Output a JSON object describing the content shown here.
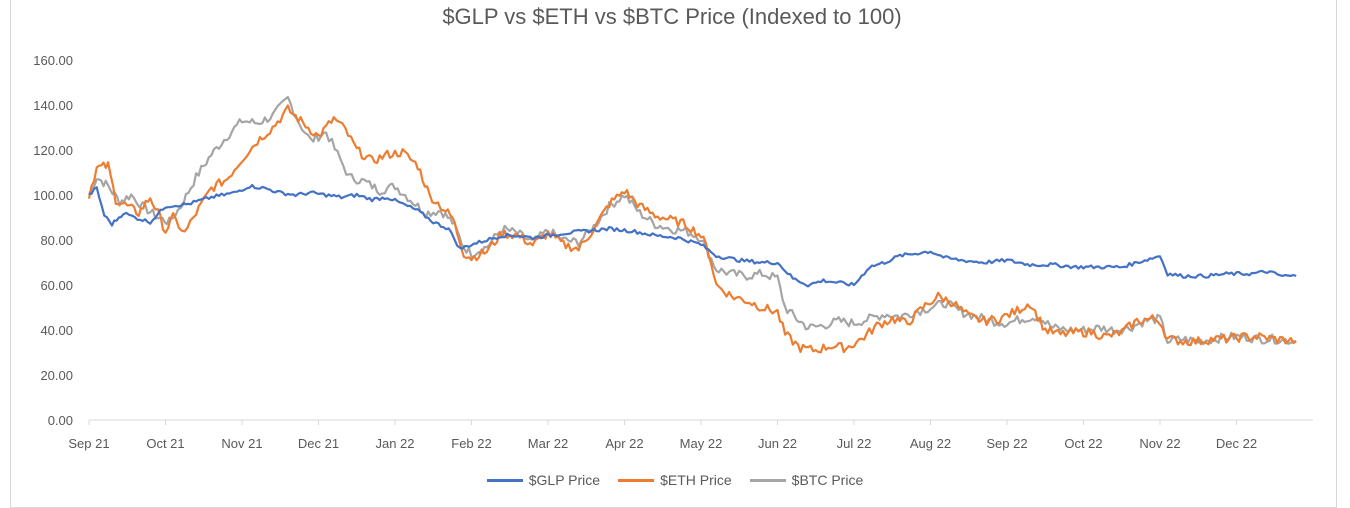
{
  "chart_data": {
    "type": "line",
    "title": "$GLP vs $ETH vs $BTC Price (Indexed to 100)",
    "ylim": [
      0,
      160
    ],
    "yticks": [
      "0.00",
      "20.00",
      "40.00",
      "60.00",
      "80.00",
      "100.00",
      "120.00",
      "140.00",
      "160.00"
    ],
    "xticks": [
      "Sep 21",
      "Oct 21",
      "Nov 21",
      "Dec 21",
      "Jan 22",
      "Feb 22",
      "Mar 22",
      "Apr 22",
      "May 22",
      "Jun 22",
      "Jul 22",
      "Aug 22",
      "Sep 22",
      "Oct 22",
      "Nov 22",
      "Dec 22"
    ],
    "grid": false,
    "legend_position": "bottom",
    "series": [
      {
        "name": "$GLP Price",
        "color": "#4472c4",
        "points": [
          [
            0,
            100
          ],
          [
            0.1,
            103
          ],
          [
            0.2,
            91
          ],
          [
            0.3,
            87
          ],
          [
            0.45,
            92
          ],
          [
            0.6,
            90
          ],
          [
            0.8,
            88
          ],
          [
            1.0,
            95
          ],
          [
            1.3,
            96
          ],
          [
            1.6,
            99
          ],
          [
            1.9,
            101
          ],
          [
            2.1,
            104
          ],
          [
            2.3,
            103
          ],
          [
            2.5,
            101
          ],
          [
            2.7,
            100
          ],
          [
            2.9,
            101
          ],
          [
            3.1,
            100
          ],
          [
            3.3,
            99
          ],
          [
            3.5,
            100
          ],
          [
            3.7,
            98
          ],
          [
            3.9,
            99
          ],
          [
            4.1,
            96
          ],
          [
            4.3,
            93
          ],
          [
            4.5,
            88
          ],
          [
            4.7,
            85
          ],
          [
            4.85,
            76
          ],
          [
            5.0,
            78
          ],
          [
            5.2,
            80
          ],
          [
            5.4,
            82
          ],
          [
            5.6,
            82
          ],
          [
            5.8,
            81
          ],
          [
            6.0,
            82
          ],
          [
            6.2,
            83
          ],
          [
            6.5,
            84
          ],
          [
            6.8,
            85
          ],
          [
            7.1,
            84
          ],
          [
            7.4,
            82
          ],
          [
            7.7,
            81
          ],
          [
            8.0,
            78
          ],
          [
            8.2,
            73
          ],
          [
            8.5,
            71
          ],
          [
            8.8,
            70
          ],
          [
            9.0,
            70
          ],
          [
            9.2,
            63
          ],
          [
            9.4,
            60
          ],
          [
            9.6,
            62
          ],
          [
            9.8,
            61
          ],
          [
            10.0,
            60
          ],
          [
            10.2,
            68
          ],
          [
            10.4,
            70
          ],
          [
            10.6,
            73
          ],
          [
            10.8,
            74
          ],
          [
            11.0,
            75
          ],
          [
            11.2,
            72
          ],
          [
            11.4,
            71
          ],
          [
            11.7,
            70
          ],
          [
            12.0,
            71
          ],
          [
            12.3,
            69
          ],
          [
            12.6,
            69
          ],
          [
            12.9,
            68
          ],
          [
            13.2,
            68
          ],
          [
            13.5,
            68
          ],
          [
            13.8,
            71
          ],
          [
            14.0,
            73
          ],
          [
            14.1,
            65
          ],
          [
            14.3,
            64
          ],
          [
            14.6,
            64
          ],
          [
            14.9,
            65
          ],
          [
            15.2,
            65
          ],
          [
            15.4,
            66
          ],
          [
            15.6,
            64
          ],
          [
            15.78,
            64
          ]
        ]
      },
      {
        "name": "$ETH Price",
        "color": "#ed7d31",
        "points": [
          [
            0,
            100
          ],
          [
            0.1,
            112
          ],
          [
            0.25,
            113
          ],
          [
            0.35,
            98
          ],
          [
            0.5,
            95
          ],
          [
            0.65,
            92
          ],
          [
            0.8,
            99
          ],
          [
            0.9,
            92
          ],
          [
            1.0,
            84
          ],
          [
            1.1,
            90
          ],
          [
            1.25,
            83
          ],
          [
            1.4,
            92
          ],
          [
            1.6,
            103
          ],
          [
            1.8,
            107
          ],
          [
            2.0,
            116
          ],
          [
            2.2,
            124
          ],
          [
            2.4,
            130
          ],
          [
            2.6,
            138
          ],
          [
            2.8,
            132
          ],
          [
            3.0,
            126
          ],
          [
            3.2,
            134
          ],
          [
            3.35,
            129
          ],
          [
            3.5,
            120
          ],
          [
            3.7,
            115
          ],
          [
            3.9,
            118
          ],
          [
            4.1,
            119
          ],
          [
            4.3,
            113
          ],
          [
            4.45,
            100
          ],
          [
            4.6,
            95
          ],
          [
            4.75,
            90
          ],
          [
            4.9,
            74
          ],
          [
            5.0,
            72
          ],
          [
            5.2,
            75
          ],
          [
            5.4,
            83
          ],
          [
            5.6,
            82
          ],
          [
            5.8,
            78
          ],
          [
            6.0,
            83
          ],
          [
            6.2,
            78
          ],
          [
            6.4,
            76
          ],
          [
            6.6,
            85
          ],
          [
            6.8,
            96
          ],
          [
            7.0,
            102
          ],
          [
            7.2,
            95
          ],
          [
            7.4,
            91
          ],
          [
            7.6,
            89
          ],
          [
            7.8,
            87
          ],
          [
            8.0,
            82
          ],
          [
            8.1,
            75
          ],
          [
            8.2,
            60
          ],
          [
            8.4,
            55
          ],
          [
            8.6,
            53
          ],
          [
            8.8,
            50
          ],
          [
            9.0,
            48
          ],
          [
            9.1,
            38
          ],
          [
            9.3,
            32
          ],
          [
            9.5,
            31
          ],
          [
            9.7,
            33
          ],
          [
            9.9,
            32
          ],
          [
            10.1,
            36
          ],
          [
            10.3,
            42
          ],
          [
            10.5,
            45
          ],
          [
            10.7,
            43
          ],
          [
            10.9,
            50
          ],
          [
            11.1,
            55
          ],
          [
            11.3,
            52
          ],
          [
            11.5,
            46
          ],
          [
            11.7,
            44
          ],
          [
            11.9,
            45
          ],
          [
            12.1,
            48
          ],
          [
            12.3,
            52
          ],
          [
            12.5,
            40
          ],
          [
            12.7,
            38
          ],
          [
            12.9,
            39
          ],
          [
            13.1,
            39
          ],
          [
            13.3,
            37
          ],
          [
            13.5,
            39
          ],
          [
            13.7,
            44
          ],
          [
            13.9,
            45
          ],
          [
            14.0,
            44
          ],
          [
            14.1,
            36
          ],
          [
            14.3,
            35
          ],
          [
            14.5,
            35
          ],
          [
            14.7,
            36
          ],
          [
            14.9,
            36
          ],
          [
            15.1,
            37
          ],
          [
            15.3,
            37
          ],
          [
            15.5,
            36
          ],
          [
            15.78,
            35
          ]
        ]
      },
      {
        "name": "$BTC Price",
        "color": "#a5a5a5",
        "points": [
          [
            0,
            100
          ],
          [
            0.1,
            108
          ],
          [
            0.25,
            104
          ],
          [
            0.4,
            97
          ],
          [
            0.55,
            100
          ],
          [
            0.7,
            95
          ],
          [
            0.9,
            90
          ],
          [
            1.05,
            88
          ],
          [
            1.2,
            95
          ],
          [
            1.4,
            108
          ],
          [
            1.6,
            118
          ],
          [
            1.8,
            126
          ],
          [
            2.0,
            133
          ],
          [
            2.2,
            132
          ],
          [
            2.4,
            135
          ],
          [
            2.6,
            143
          ],
          [
            2.75,
            132
          ],
          [
            2.9,
            124
          ],
          [
            3.1,
            128
          ],
          [
            3.25,
            118
          ],
          [
            3.4,
            108
          ],
          [
            3.6,
            106
          ],
          [
            3.8,
            102
          ],
          [
            4.0,
            104
          ],
          [
            4.2,
            98
          ],
          [
            4.4,
            92
          ],
          [
            4.6,
            93
          ],
          [
            4.75,
            88
          ],
          [
            4.9,
            77
          ],
          [
            5.0,
            74
          ],
          [
            5.2,
            77
          ],
          [
            5.4,
            85
          ],
          [
            5.6,
            83
          ],
          [
            5.8,
            79
          ],
          [
            6.0,
            84
          ],
          [
            6.2,
            80
          ],
          [
            6.4,
            79
          ],
          [
            6.6,
            86
          ],
          [
            6.8,
            95
          ],
          [
            7.0,
            100
          ],
          [
            7.2,
            92
          ],
          [
            7.4,
            87
          ],
          [
            7.6,
            85
          ],
          [
            7.8,
            84
          ],
          [
            8.0,
            81
          ],
          [
            8.1,
            74
          ],
          [
            8.2,
            67
          ],
          [
            8.4,
            65
          ],
          [
            8.6,
            64
          ],
          [
            8.8,
            65
          ],
          [
            9.0,
            63
          ],
          [
            9.1,
            50
          ],
          [
            9.25,
            45
          ],
          [
            9.4,
            41
          ],
          [
            9.6,
            42
          ],
          [
            9.8,
            44
          ],
          [
            10.0,
            43
          ],
          [
            10.2,
            45
          ],
          [
            10.4,
            47
          ],
          [
            10.6,
            46
          ],
          [
            10.8,
            48
          ],
          [
            11.0,
            50
          ],
          [
            11.2,
            52
          ],
          [
            11.4,
            48
          ],
          [
            11.6,
            46
          ],
          [
            11.8,
            44
          ],
          [
            12.0,
            43
          ],
          [
            12.2,
            45
          ],
          [
            12.4,
            46
          ],
          [
            12.6,
            41
          ],
          [
            12.8,
            40
          ],
          [
            13.0,
            40
          ],
          [
            13.2,
            41
          ],
          [
            13.4,
            40
          ],
          [
            13.6,
            41
          ],
          [
            13.8,
            44
          ],
          [
            14.0,
            45
          ],
          [
            14.1,
            35
          ],
          [
            14.3,
            36
          ],
          [
            14.5,
            35
          ],
          [
            14.7,
            36
          ],
          [
            14.9,
            37
          ],
          [
            15.1,
            37
          ],
          [
            15.3,
            36
          ],
          [
            15.5,
            36
          ],
          [
            15.78,
            35
          ]
        ]
      }
    ]
  }
}
